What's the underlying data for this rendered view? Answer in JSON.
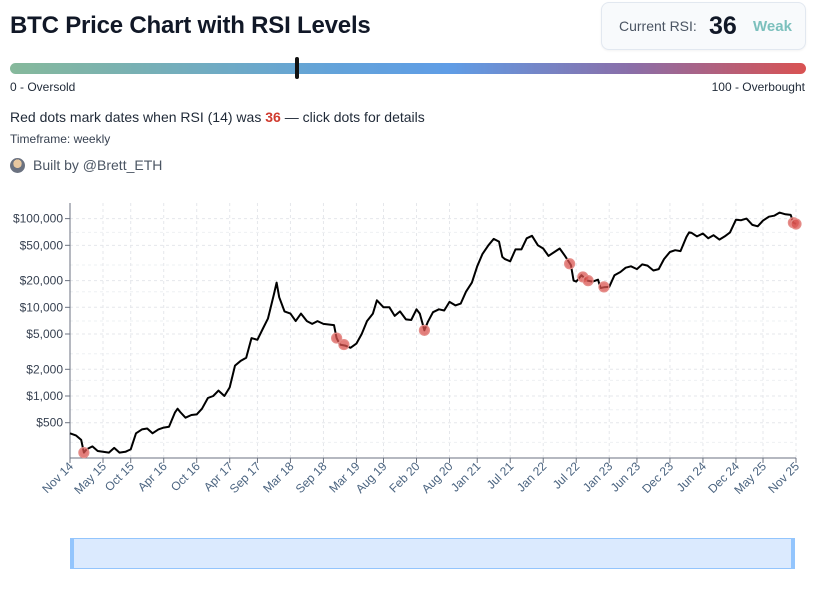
{
  "header": {
    "title": "BTC Price Chart with RSI Levels"
  },
  "rsi_card": {
    "label": "Current RSI:",
    "value": "36",
    "state": "Weak",
    "state_color": "#7cc0bd"
  },
  "gauge": {
    "value": 36,
    "min_label": "0 - Oversold",
    "max_label": "100 - Overbought"
  },
  "description": {
    "prefix": "Red dots mark dates when RSI (14) was ",
    "highlight": "36",
    "suffix": " — click dots for details"
  },
  "timeframe": "Timeframe: weekly",
  "credit": {
    "text": "Built by @Brett_ETH",
    "avatar_icon": "avatar-icon"
  },
  "chart_data": {
    "type": "line",
    "title": "BTC Price Chart with RSI Levels",
    "xlabel": "",
    "ylabel": "",
    "yscale": "log",
    "ylim": [
      200,
      150000
    ],
    "xlim": [
      2014.83,
      2025.83
    ],
    "grid": true,
    "line_color": "#000000",
    "marker_color": "#d9534f",
    "yticks": [
      {
        "value": 500,
        "label": "$500"
      },
      {
        "value": 1000,
        "label": "$1,000"
      },
      {
        "value": 2000,
        "label": "$2,000"
      },
      {
        "value": 5000,
        "label": "$5,000"
      },
      {
        "value": 10000,
        "label": "$10,000"
      },
      {
        "value": 20000,
        "label": "$20,000"
      },
      {
        "value": 50000,
        "label": "$50,000"
      },
      {
        "value": 100000,
        "label": "$100,000"
      }
    ],
    "xticks": [
      {
        "t": 2014.83,
        "label": "Nov 14"
      },
      {
        "t": 2015.33,
        "label": "May 15"
      },
      {
        "t": 2015.75,
        "label": "Oct 15"
      },
      {
        "t": 2016.25,
        "label": "Apr 16"
      },
      {
        "t": 2016.75,
        "label": "Oct 16"
      },
      {
        "t": 2017.25,
        "label": "Apr 17"
      },
      {
        "t": 2017.67,
        "label": "Sep 17"
      },
      {
        "t": 2018.17,
        "label": "Mar 18"
      },
      {
        "t": 2018.67,
        "label": "Sep 18"
      },
      {
        "t": 2019.17,
        "label": "Mar 19"
      },
      {
        "t": 2019.58,
        "label": "Aug 19"
      },
      {
        "t": 2020.08,
        "label": "Feb 20"
      },
      {
        "t": 2020.58,
        "label": "Aug 20"
      },
      {
        "t": 2021.0,
        "label": "Jan 21"
      },
      {
        "t": 2021.5,
        "label": "Jul 21"
      },
      {
        "t": 2022.0,
        "label": "Jan 22"
      },
      {
        "t": 2022.5,
        "label": "Jul 22"
      },
      {
        "t": 2023.0,
        "label": "Jan 23"
      },
      {
        "t": 2023.42,
        "label": "Jun 23"
      },
      {
        "t": 2023.92,
        "label": "Dec 23"
      },
      {
        "t": 2024.42,
        "label": "Jun 24"
      },
      {
        "t": 2024.92,
        "label": "Dec 24"
      },
      {
        "t": 2025.33,
        "label": "May 25"
      },
      {
        "t": 2025.83,
        "label": "Nov 25"
      }
    ],
    "series": [
      {
        "name": "BTC Price",
        "points": [
          [
            2014.83,
            380
          ],
          [
            2014.92,
            360
          ],
          [
            2015.0,
            320
          ],
          [
            2015.04,
            230
          ],
          [
            2015.08,
            250
          ],
          [
            2015.17,
            270
          ],
          [
            2015.25,
            240
          ],
          [
            2015.33,
            235
          ],
          [
            2015.42,
            230
          ],
          [
            2015.5,
            260
          ],
          [
            2015.58,
            230
          ],
          [
            2015.67,
            235
          ],
          [
            2015.75,
            250
          ],
          [
            2015.83,
            380
          ],
          [
            2015.92,
            420
          ],
          [
            2016.0,
            430
          ],
          [
            2016.08,
            380
          ],
          [
            2016.17,
            420
          ],
          [
            2016.25,
            440
          ],
          [
            2016.33,
            450
          ],
          [
            2016.42,
            650
          ],
          [
            2016.46,
            720
          ],
          [
            2016.5,
            660
          ],
          [
            2016.58,
            570
          ],
          [
            2016.67,
            610
          ],
          [
            2016.75,
            620
          ],
          [
            2016.83,
            720
          ],
          [
            2016.92,
            950
          ],
          [
            2017.0,
            1000
          ],
          [
            2017.08,
            1150
          ],
          [
            2017.17,
            1000
          ],
          [
            2017.25,
            1250
          ],
          [
            2017.33,
            2200
          ],
          [
            2017.42,
            2500
          ],
          [
            2017.5,
            2700
          ],
          [
            2017.58,
            4500
          ],
          [
            2017.67,
            4300
          ],
          [
            2017.75,
            5700
          ],
          [
            2017.83,
            7500
          ],
          [
            2017.92,
            14000
          ],
          [
            2017.96,
            19000
          ],
          [
            2018.0,
            13000
          ],
          [
            2018.08,
            9000
          ],
          [
            2018.17,
            8500
          ],
          [
            2018.25,
            7000
          ],
          [
            2018.33,
            8500
          ],
          [
            2018.42,
            7000
          ],
          [
            2018.5,
            6500
          ],
          [
            2018.58,
            7000
          ],
          [
            2018.67,
            6500
          ],
          [
            2018.75,
            6400
          ],
          [
            2018.83,
            6300
          ],
          [
            2018.87,
            4500
          ],
          [
            2018.92,
            3800
          ],
          [
            2019.0,
            3700
          ],
          [
            2019.08,
            3500
          ],
          [
            2019.17,
            3900
          ],
          [
            2019.25,
            5000
          ],
          [
            2019.33,
            7000
          ],
          [
            2019.42,
            8500
          ],
          [
            2019.48,
            12000
          ],
          [
            2019.58,
            10000
          ],
          [
            2019.67,
            10000
          ],
          [
            2019.75,
            8000
          ],
          [
            2019.83,
            9000
          ],
          [
            2019.92,
            7300
          ],
          [
            2020.0,
            7200
          ],
          [
            2020.08,
            9500
          ],
          [
            2020.13,
            8500
          ],
          [
            2020.2,
            5500
          ],
          [
            2020.25,
            6800
          ],
          [
            2020.33,
            8800
          ],
          [
            2020.42,
            9500
          ],
          [
            2020.5,
            9200
          ],
          [
            2020.58,
            11500
          ],
          [
            2020.67,
            10500
          ],
          [
            2020.75,
            11000
          ],
          [
            2020.83,
            15000
          ],
          [
            2020.92,
            19000
          ],
          [
            2021.0,
            29000
          ],
          [
            2021.08,
            40000
          ],
          [
            2021.17,
            50000
          ],
          [
            2021.25,
            59000
          ],
          [
            2021.33,
            55000
          ],
          [
            2021.38,
            37000
          ],
          [
            2021.42,
            35000
          ],
          [
            2021.5,
            33000
          ],
          [
            2021.58,
            45000
          ],
          [
            2021.67,
            45000
          ],
          [
            2021.75,
            60000
          ],
          [
            2021.83,
            64000
          ],
          [
            2021.92,
            50000
          ],
          [
            2022.0,
            46000
          ],
          [
            2022.08,
            38000
          ],
          [
            2022.17,
            42000
          ],
          [
            2022.25,
            46000
          ],
          [
            2022.33,
            38000
          ],
          [
            2022.42,
            30000
          ],
          [
            2022.46,
            20000
          ],
          [
            2022.5,
            19500
          ],
          [
            2022.58,
            23000
          ],
          [
            2022.67,
            20000
          ],
          [
            2022.75,
            19500
          ],
          [
            2022.83,
            20500
          ],
          [
            2022.87,
            16500
          ],
          [
            2022.92,
            16800
          ],
          [
            2023.0,
            17000
          ],
          [
            2023.08,
            23000
          ],
          [
            2023.17,
            25000
          ],
          [
            2023.25,
            28000
          ],
          [
            2023.33,
            29000
          ],
          [
            2023.42,
            27000
          ],
          [
            2023.5,
            30500
          ],
          [
            2023.58,
            29500
          ],
          [
            2023.67,
            26000
          ],
          [
            2023.75,
            27000
          ],
          [
            2023.83,
            35000
          ],
          [
            2023.92,
            42000
          ],
          [
            2024.0,
            44000
          ],
          [
            2024.08,
            43000
          ],
          [
            2024.17,
            62000
          ],
          [
            2024.21,
            70000
          ],
          [
            2024.25,
            69000
          ],
          [
            2024.33,
            63000
          ],
          [
            2024.42,
            68000
          ],
          [
            2024.5,
            60000
          ],
          [
            2024.58,
            65000
          ],
          [
            2024.67,
            58000
          ],
          [
            2024.75,
            63000
          ],
          [
            2024.83,
            70000
          ],
          [
            2024.92,
            97000
          ],
          [
            2025.0,
            96000
          ],
          [
            2025.08,
            100000
          ],
          [
            2025.17,
            85000
          ],
          [
            2025.25,
            82000
          ],
          [
            2025.33,
            95000
          ],
          [
            2025.42,
            105000
          ],
          [
            2025.5,
            108000
          ],
          [
            2025.58,
            117000
          ],
          [
            2025.67,
            112000
          ],
          [
            2025.75,
            110000
          ],
          [
            2025.79,
            90000
          ],
          [
            2025.83,
            87000
          ]
        ]
      }
    ],
    "markers": [
      {
        "t": 2015.04,
        "value": 230
      },
      {
        "t": 2018.87,
        "value": 4500
      },
      {
        "t": 2018.98,
        "value": 3800
      },
      {
        "t": 2020.2,
        "value": 5500
      },
      {
        "t": 2022.4,
        "value": 31000
      },
      {
        "t": 2022.6,
        "value": 22000
      },
      {
        "t": 2022.68,
        "value": 20000
      },
      {
        "t": 2022.92,
        "value": 17000
      },
      {
        "t": 2025.79,
        "value": 90000
      },
      {
        "t": 2025.83,
        "value": 87000
      }
    ]
  }
}
